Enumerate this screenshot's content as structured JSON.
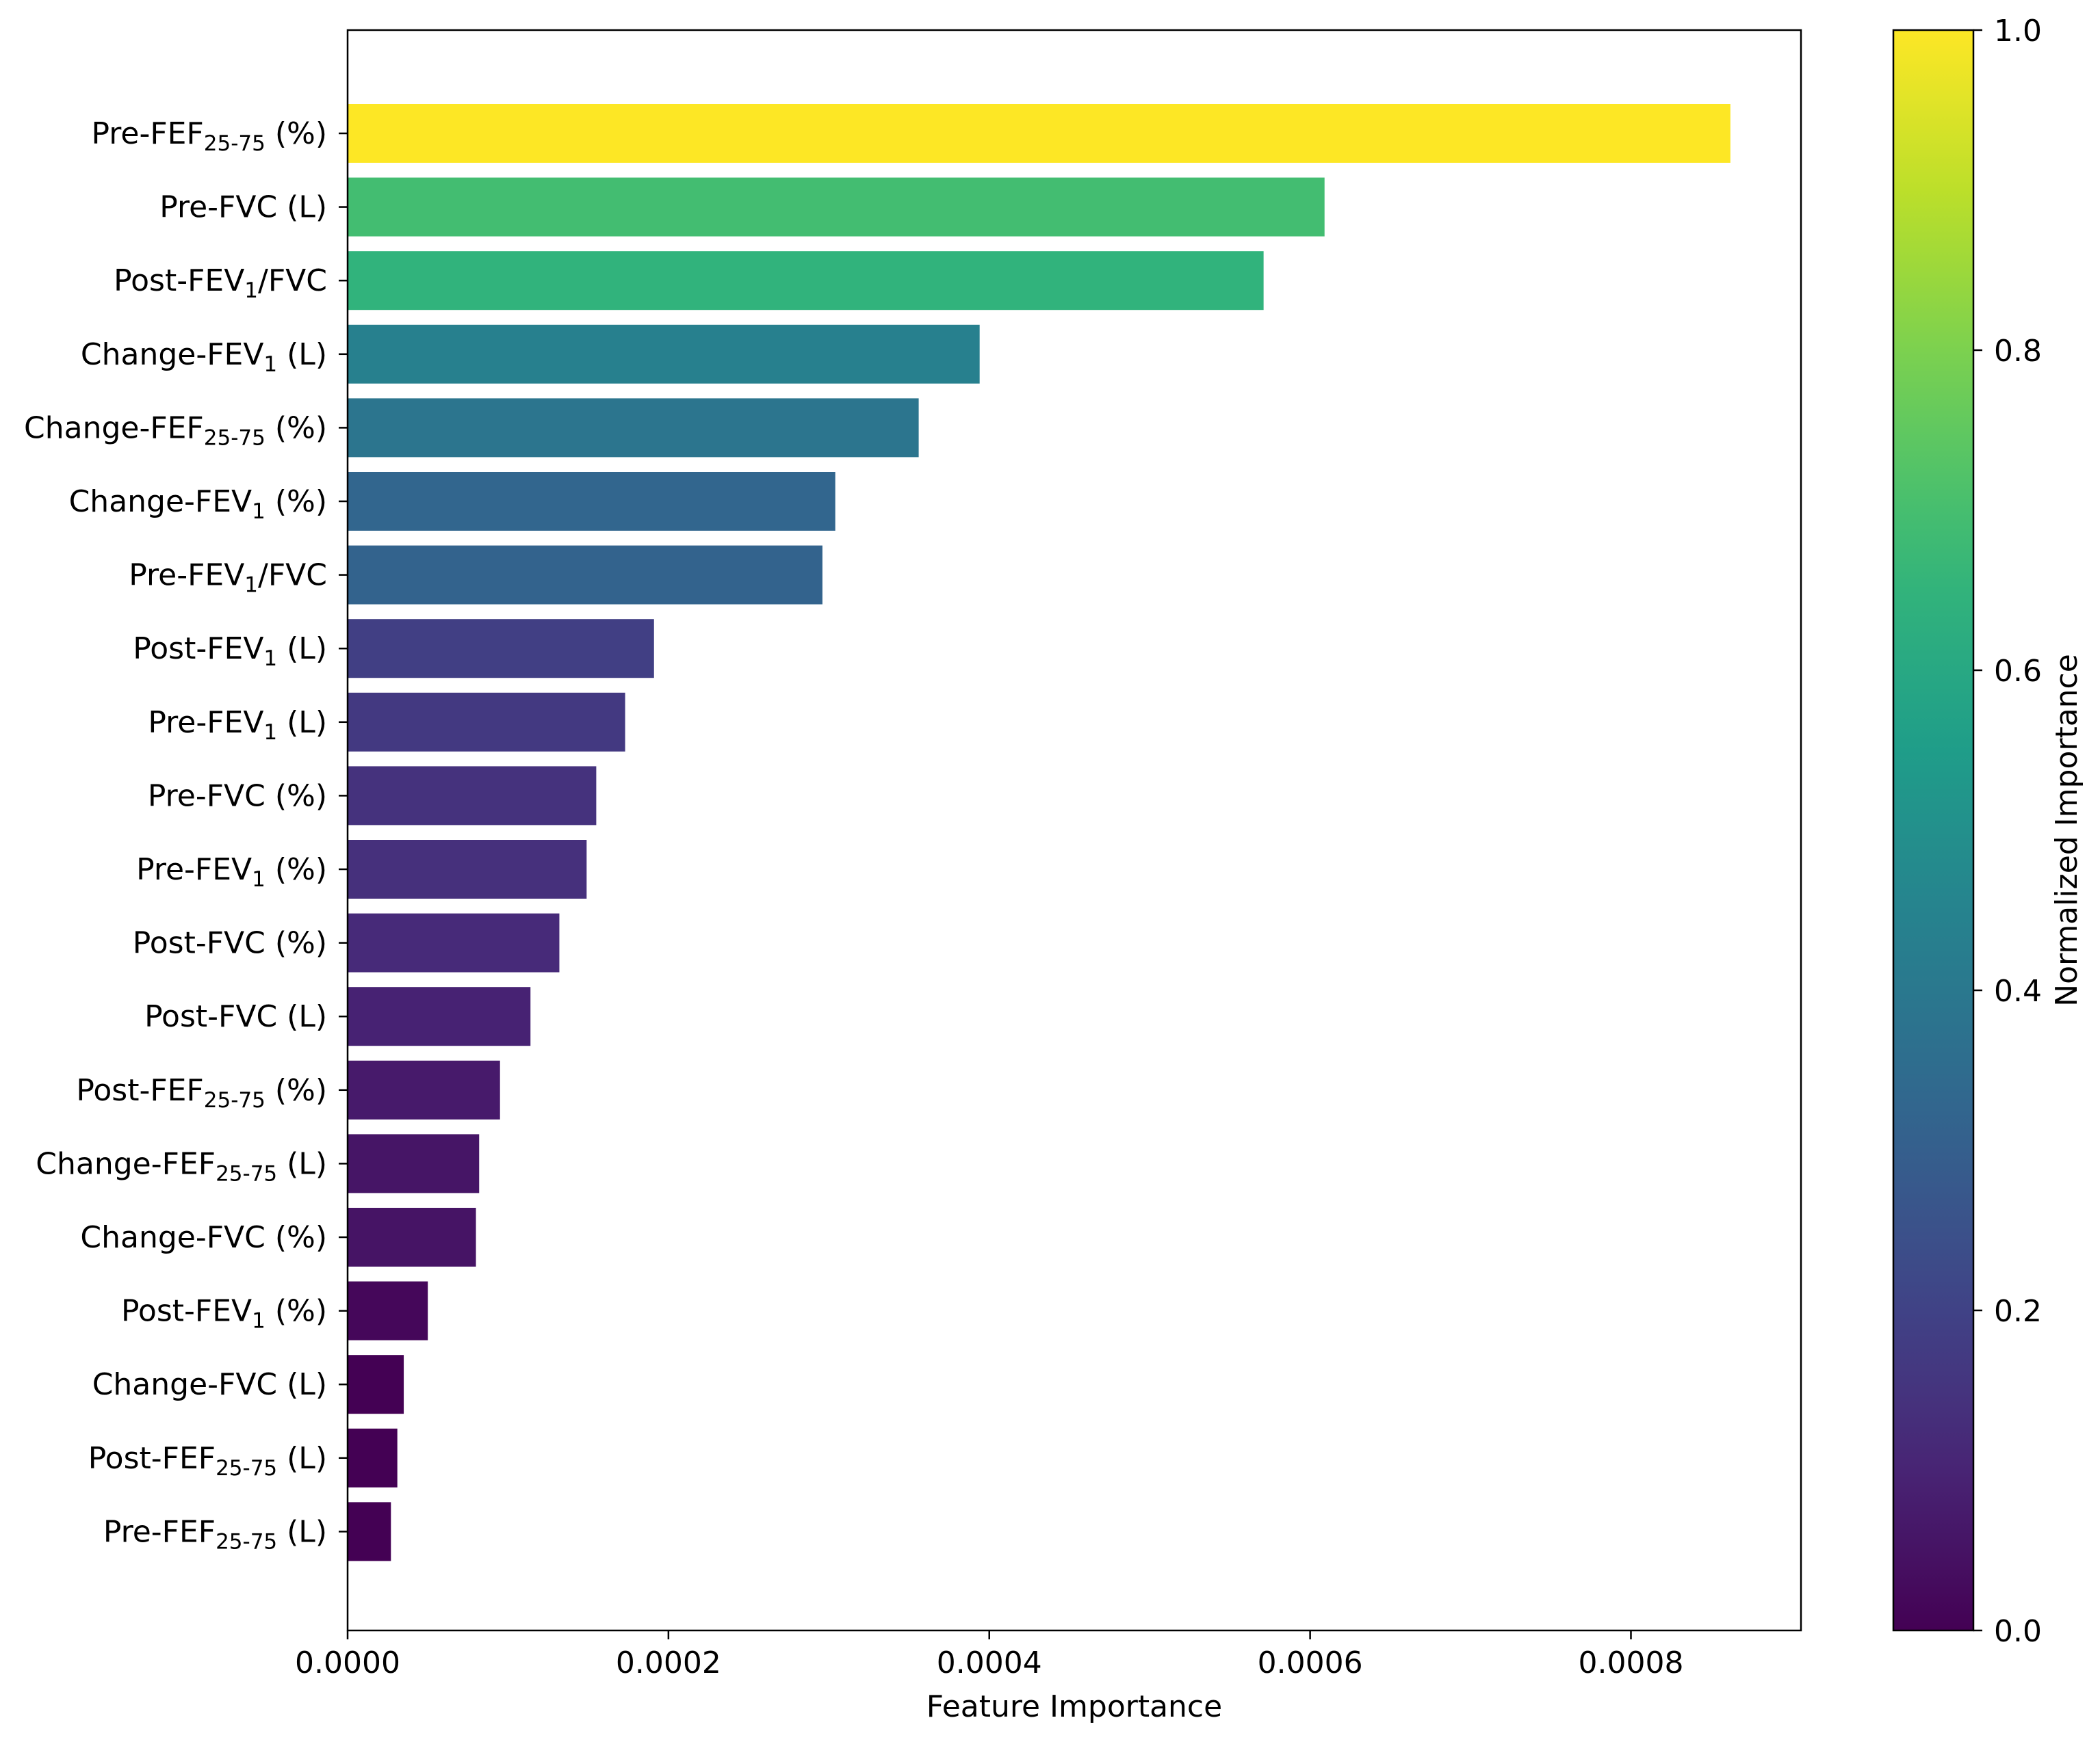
{
  "chart_data": {
    "type": "bar",
    "orientation": "horizontal",
    "xlabel": "Feature Importance",
    "ylabel": "",
    "xlim": [
      0,
      0.000906
    ],
    "xticks": [
      {
        "value": 0.0,
        "label": "0.0000"
      },
      {
        "value": 0.0002,
        "label": "0.0002"
      },
      {
        "value": 0.0004,
        "label": "0.0004"
      },
      {
        "value": 0.0006,
        "label": "0.0006"
      },
      {
        "value": 0.0008,
        "label": "0.0008"
      }
    ],
    "bars": [
      {
        "base": "Pre-FEF",
        "sub": "25-75",
        "suffix": " (%)",
        "value": 0.000862,
        "norm": 1.0
      },
      {
        "base": "Pre-FVC (L)",
        "sub": "",
        "suffix": "",
        "value": 0.000609,
        "norm": 0.694
      },
      {
        "base": "Post-FEV",
        "sub": "1",
        "suffix": "/FVC",
        "value": 0.000571,
        "norm": 0.648
      },
      {
        "base": "Change-FEV",
        "sub": "1",
        "suffix": " (L)",
        "value": 0.000394,
        "norm": 0.434
      },
      {
        "base": "Change-FEF",
        "sub": "25-75",
        "suffix": " (%)",
        "value": 0.000356,
        "norm": 0.388
      },
      {
        "base": "Change-FEV",
        "sub": "1",
        "suffix": " (%)",
        "value": 0.000304,
        "norm": 0.325
      },
      {
        "base": "Pre-FEV",
        "sub": "1",
        "suffix": "/FVC",
        "value": 0.000296,
        "norm": 0.316
      },
      {
        "base": "Post-FEV",
        "sub": "1",
        "suffix": " (L)",
        "value": 0.000191,
        "norm": 0.189
      },
      {
        "base": "Pre-FEV",
        "sub": "1",
        "suffix": " (L)",
        "value": 0.000173,
        "norm": 0.167
      },
      {
        "base": "Pre-FVC (%)",
        "sub": "",
        "suffix": "",
        "value": 0.000155,
        "norm": 0.145
      },
      {
        "base": "Pre-FEV",
        "sub": "1",
        "suffix": " (%)",
        "value": 0.000149,
        "norm": 0.138
      },
      {
        "base": "Post-FVC (%)",
        "sub": "",
        "suffix": "",
        "value": 0.000132,
        "norm": 0.117
      },
      {
        "base": "Post-FVC (L)",
        "sub": "",
        "suffix": "",
        "value": 0.000114,
        "norm": 0.095
      },
      {
        "base": "Post-FEF",
        "sub": "25-75",
        "suffix": " (%)",
        "value": 9.5e-05,
        "norm": 0.072
      },
      {
        "base": "Change-FEF",
        "sub": "25-75",
        "suffix": " (L)",
        "value": 8.2e-05,
        "norm": 0.057
      },
      {
        "base": "Change-FVC (%)",
        "sub": "",
        "suffix": "",
        "value": 8e-05,
        "norm": 0.054
      },
      {
        "base": "Post-FEV",
        "sub": "1",
        "suffix": " (%)",
        "value": 5e-05,
        "norm": 0.018
      },
      {
        "base": "Change-FVC (L)",
        "sub": "",
        "suffix": "",
        "value": 3.5e-05,
        "norm": 0.0
      },
      {
        "base": "Post-FEF",
        "sub": "25-75",
        "suffix": " (L)",
        "value": 3.1e-05,
        "norm": 0.0
      },
      {
        "base": "Pre-FEF",
        "sub": "25-75",
        "suffix": " (L)",
        "value": 2.7e-05,
        "norm": 0.0
      }
    ],
    "colorbar": {
      "label": "Normalized Importance",
      "colormap": "viridis",
      "range": [
        0,
        1
      ],
      "ticks": [
        {
          "value": 0.0,
          "label": "0.0"
        },
        {
          "value": 0.2,
          "label": "0.2"
        },
        {
          "value": 0.4,
          "label": "0.4"
        },
        {
          "value": 0.6,
          "label": "0.6"
        },
        {
          "value": 0.8,
          "label": "0.8"
        },
        {
          "value": 1.0,
          "label": "1.0"
        }
      ],
      "stops": [
        "#440154",
        "#3b528b",
        "#21918c",
        "#5ec962",
        "#fde725"
      ]
    }
  }
}
